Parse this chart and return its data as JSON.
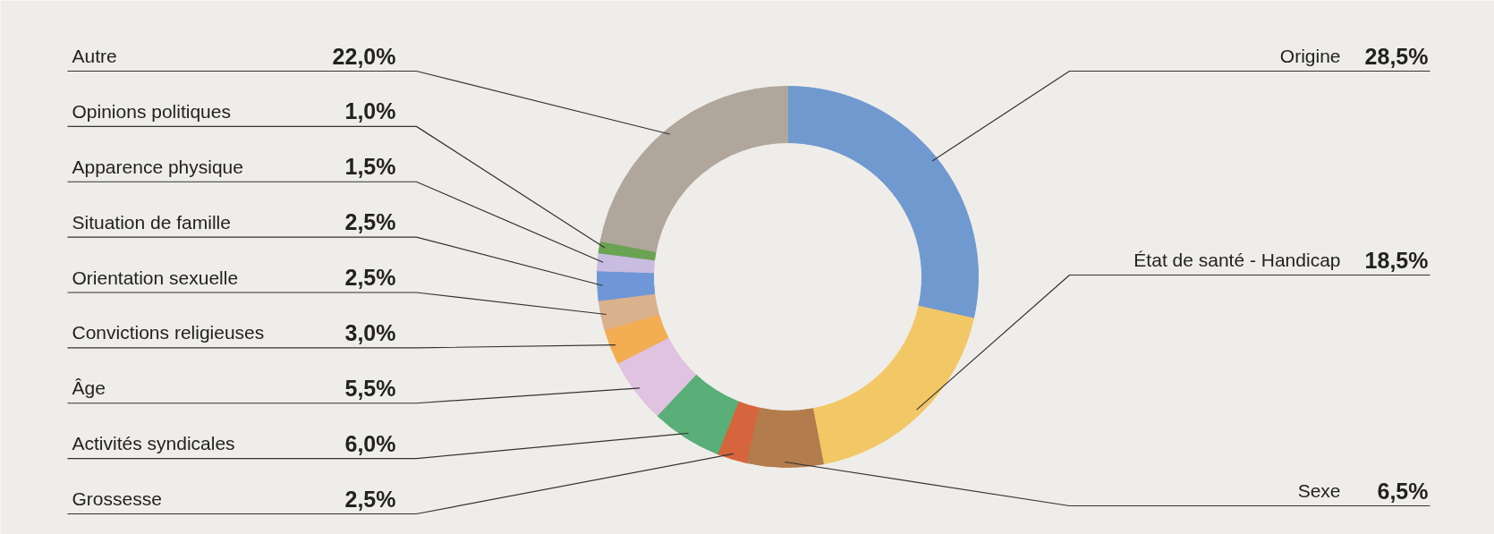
{
  "chart_data": {
    "type": "donut",
    "categories": [
      "Origine",
      "État de santé - Handicap",
      "Sexe",
      "Grossesse",
      "Activités syndicales",
      "Âge",
      "Convictions religieuses",
      "Orientation sexuelle",
      "Situation de famille",
      "Apparence physique",
      "Opinions politiques",
      "Autre"
    ],
    "values": [
      28.5,
      18.5,
      6.5,
      2.5,
      6.0,
      5.5,
      3.0,
      2.5,
      2.5,
      1.5,
      1.0,
      22.0
    ],
    "value_labels": [
      "28,5%",
      "18,5%",
      "6,5%",
      "2,5%",
      "6,0%",
      "5,5%",
      "3,0%",
      "2,5%",
      "2,5%",
      "1,5%",
      "1,0%",
      "22,0%"
    ],
    "colors": [
      "#7099d0",
      "#f2c867",
      "#b27c4c",
      "#d6643c",
      "#5aae78",
      "#e0c3e0",
      "#f3ad52",
      "#d9b18c",
      "#6f96d6",
      "#c8bde0",
      "#6aa352",
      "#b0a69b"
    ]
  }
}
